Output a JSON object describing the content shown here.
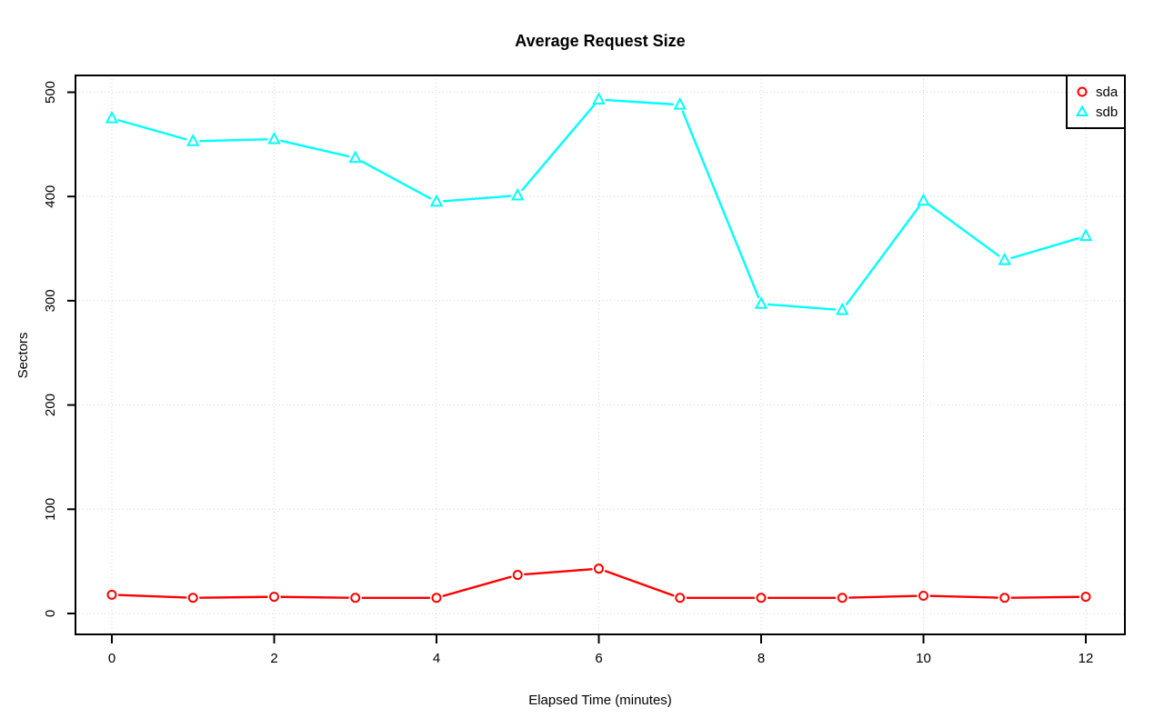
{
  "chart_data": {
    "type": "line",
    "title": "Average Request Size",
    "xlabel": "Elapsed Time (minutes)",
    "ylabel": "Sectors",
    "x": [
      0,
      1,
      2,
      3,
      4,
      5,
      6,
      7,
      8,
      9,
      10,
      11,
      12
    ],
    "x_ticks": [
      0,
      2,
      4,
      6,
      8,
      10,
      12
    ],
    "y_ticks": [
      0,
      100,
      200,
      300,
      400,
      500
    ],
    "xlim": [
      0,
      12
    ],
    "ylim": [
      0,
      500
    ],
    "grid": "dotted",
    "legend_position": "topright",
    "series": [
      {
        "name": "sda",
        "marker": "circle",
        "color": "#ff0000",
        "values": [
          18,
          15,
          16,
          15,
          15,
          37,
          43,
          15,
          15,
          15,
          17,
          15,
          16
        ]
      },
      {
        "name": "sdb",
        "marker": "triangle",
        "color": "#00ffff",
        "values": [
          475,
          453,
          455,
          437,
          395,
          401,
          493,
          488,
          297,
          291,
          396,
          339,
          362
        ]
      }
    ]
  },
  "colors": {
    "background": "#ffffff",
    "axis": "#000000",
    "grid": "#d4d4d4",
    "sda": "#ff0000",
    "sdb": "#00ffff"
  }
}
